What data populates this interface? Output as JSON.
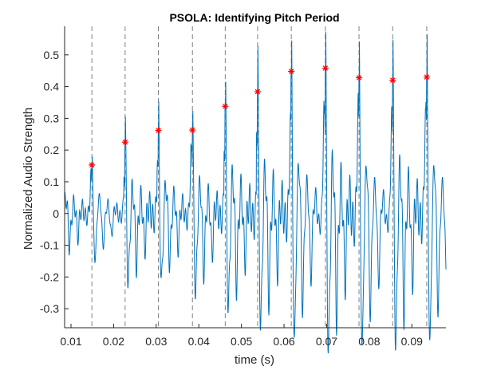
{
  "chart_data": {
    "type": "line",
    "title": "PSOLA: Identifying Pitch Period",
    "xlabel": "time (s)",
    "ylabel": "Normalized Audio Strength",
    "xlim": [
      0.0085,
      0.098
    ],
    "ylim": [
      -0.36,
      0.59
    ],
    "xticks": [
      0.01,
      0.02,
      0.03,
      0.04,
      0.05,
      0.06,
      0.07,
      0.08,
      0.09
    ],
    "xtick_labels": [
      "0.01",
      "0.02",
      "0.03",
      "0.04",
      "0.05",
      "0.06",
      "0.07",
      "0.08",
      "0.09"
    ],
    "yticks": [
      -0.3,
      -0.2,
      -0.1,
      0,
      0.1,
      0.2,
      0.3,
      0.4,
      0.5
    ],
    "ytick_labels": [
      "-0.3",
      "-0.2",
      "-0.1",
      "0",
      "0.1",
      "0.2",
      "0.3",
      "0.4",
      "0.5"
    ],
    "grid": false,
    "colors": {
      "signal": "#0072BD",
      "markers": "#FF0000",
      "pitch_lines": "#808080"
    },
    "pitch_marks": {
      "x": [
        0.0149,
        0.0227,
        0.0305,
        0.0385,
        0.0462,
        0.0538,
        0.0617,
        0.0697,
        0.0776,
        0.0855,
        0.0935
      ],
      "y": [
        0.153,
        0.225,
        0.262,
        0.263,
        0.338,
        0.384,
        0.448,
        0.458,
        0.428,
        0.42,
        0.43
      ]
    },
    "signal": {
      "x_start": 0.0085,
      "x_end": 0.098,
      "trough_levels": [
        -0.09,
        -0.14,
        -0.12,
        -0.16,
        -0.18,
        -0.22,
        -0.25,
        -0.27,
        -0.28,
        -0.27,
        -0.26
      ]
    }
  }
}
